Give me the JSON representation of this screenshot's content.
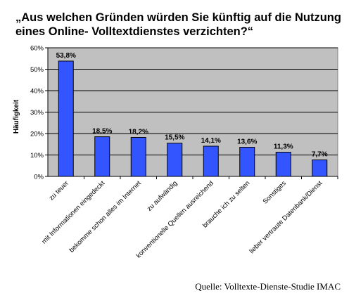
{
  "chart_data": {
    "type": "bar",
    "title_lines": [
      "„Aus welchen Gründen würden Sie künftig auf die Nutzung",
      "eines Online- Volltextdienstes verzichten?“"
    ],
    "ylabel": "Häufigkeit",
    "xlabel": "",
    "ylim": [
      0,
      60
    ],
    "yticks": [
      0,
      10,
      20,
      30,
      40,
      50,
      60
    ],
    "ytick_labels": [
      "0%",
      "10%",
      "20%",
      "30%",
      "40%",
      "50%",
      "60%"
    ],
    "categories": [
      "zu teuer",
      "mit Informationen eingedeckt",
      "bekomme schon alles im Internet",
      "zu aufwändig",
      "konventionelle Quellen ausreichend",
      "brauche ich zu selten",
      "Sonstiges",
      "lieber vertraute Datenbank/Dienst"
    ],
    "values": [
      53.8,
      18.5,
      18.2,
      15.5,
      14.1,
      13.6,
      11.3,
      7.7
    ],
    "data_labels": [
      "53,8%",
      "18,5%",
      "18,2%",
      "15,5%",
      "14,1%",
      "13,6%",
      "11,3%",
      "7,7%"
    ],
    "grid": true,
    "legend": "none",
    "colors": {
      "bar": "#3355ff",
      "bar_stroke": "#000000",
      "plot_background": "#c0c0c0",
      "grid": "#000000"
    },
    "source": "Quelle: Volltexte-Dienste-Studie IMAC"
  }
}
